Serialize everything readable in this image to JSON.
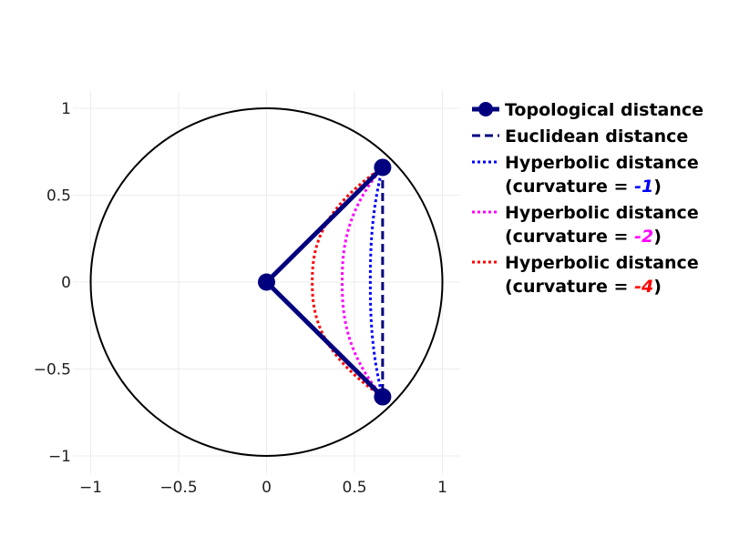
{
  "chart_data": {
    "type": "scatter",
    "xlim": [
      -1.1,
      1.1
    ],
    "ylim": [
      -1.1,
      1.1
    ],
    "x_ticks": [
      -1,
      -0.5,
      0,
      0.5,
      1
    ],
    "x_tick_labels": [
      "−1",
      "−0.5",
      "0",
      "0.5",
      "1"
    ],
    "y_ticks": [
      1,
      0.5,
      0,
      -0.5,
      -1
    ],
    "y_tick_labels": [
      "1",
      "0.5",
      "0",
      "−0.5",
      "−1"
    ],
    "grid": true,
    "legend_position": "right",
    "points": {
      "center": {
        "x": 0,
        "y": 0
      },
      "top": {
        "x": 0.66,
        "y": 0.66
      },
      "bottom": {
        "x": 0.66,
        "y": -0.66
      }
    },
    "unit_circle": {
      "radius": 1,
      "color": "#000000"
    },
    "series": [
      {
        "name": "Topological distance",
        "style": "solid-marker",
        "color": "#00007f",
        "x": [
          0.66,
          0,
          0.66
        ],
        "y": [
          0.66,
          0,
          -0.66
        ]
      },
      {
        "name": "Euclidean distance",
        "style": "dash",
        "color": "#00007f",
        "x": [
          0.66,
          0.66
        ],
        "y": [
          0.66,
          -0.66
        ]
      },
      {
        "name": "Hyperbolic distance (curvature = -1)",
        "legend_prefix": "Hyperbolic distance",
        "legend_line2": "(curvature = ",
        "curvature_label": "-1",
        "legend_suffix": ")",
        "curvature": -1,
        "min_x": 0.59,
        "style": "dot",
        "color": "#0000ff"
      },
      {
        "name": "Hyperbolic distance (curvature = -2)",
        "legend_prefix": "Hyperbolic distance",
        "legend_line2": "(curvature = ",
        "curvature_label": "-2",
        "legend_suffix": ")",
        "curvature": -2,
        "min_x": 0.43,
        "style": "dot",
        "color": "#ff00ff"
      },
      {
        "name": "Hyperbolic distance (curvature = -4)",
        "legend_prefix": "Hyperbolic distance",
        "legend_line2": "(curvature = ",
        "curvature_label": "-4",
        "legend_suffix": ")",
        "curvature": -4,
        "min_x": 0.26,
        "style": "dot",
        "color": "#ff0000"
      }
    ]
  }
}
